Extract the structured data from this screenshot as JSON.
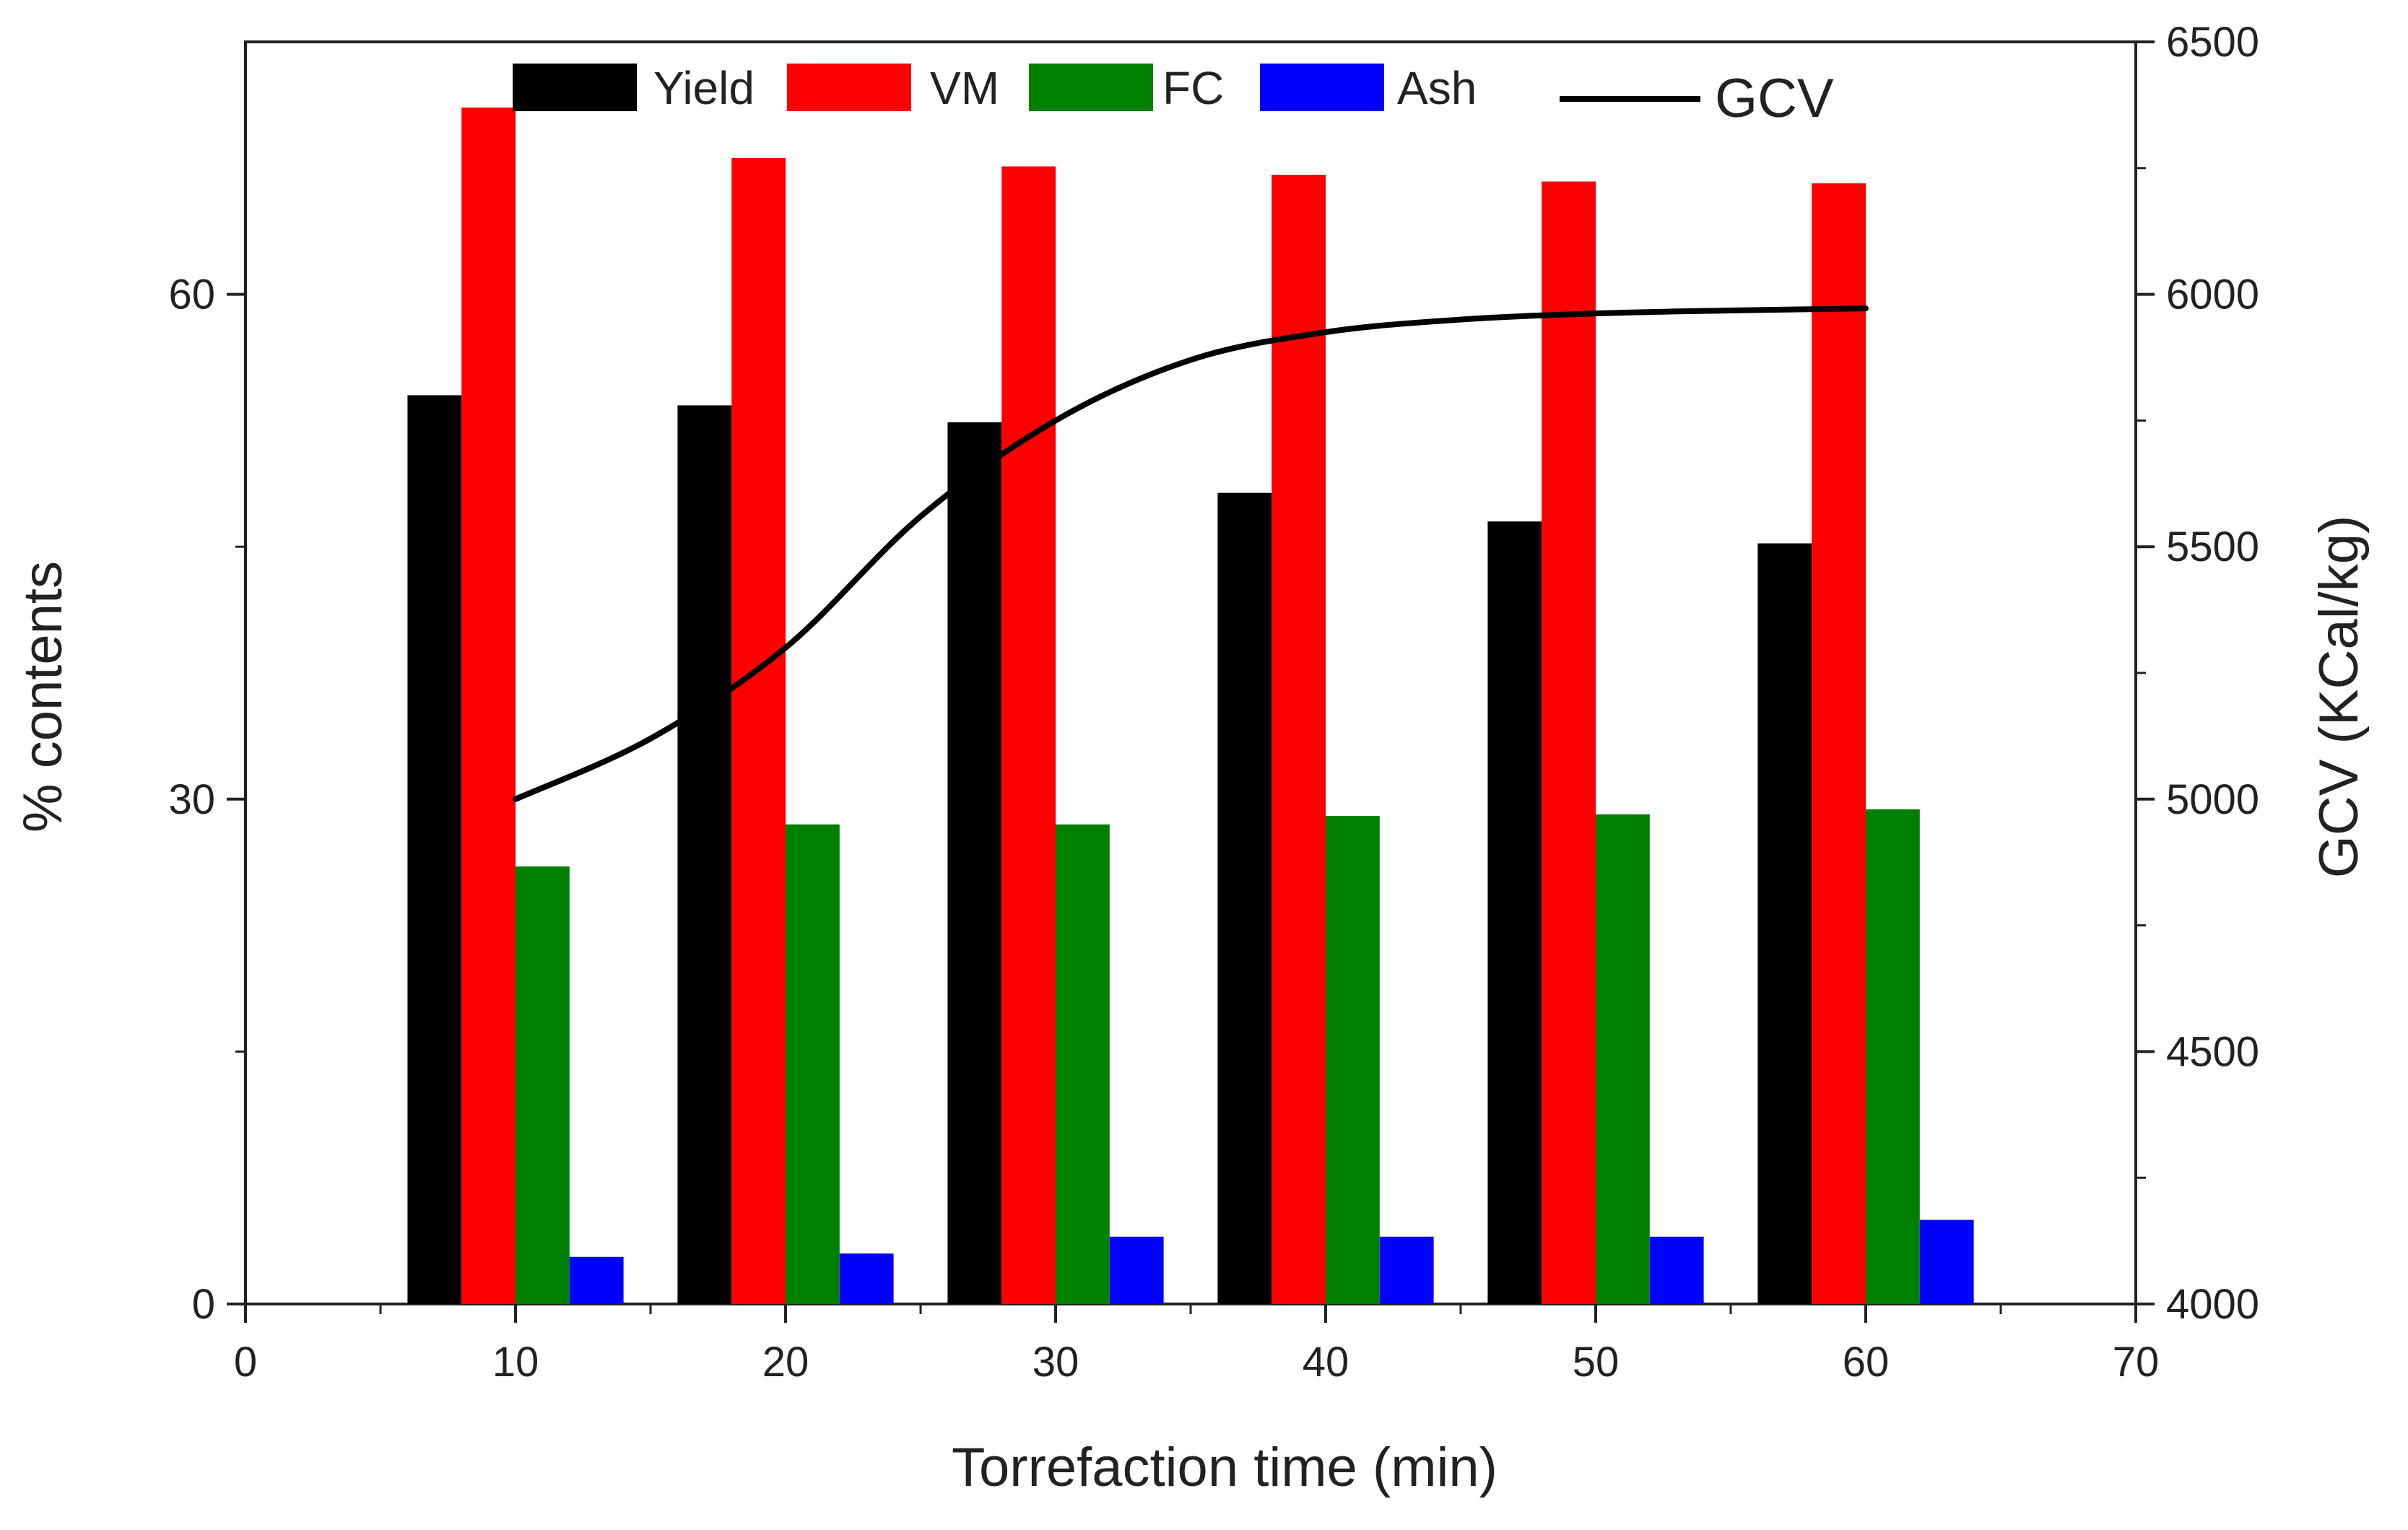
{
  "chart_data": {
    "type": "bar",
    "title": "",
    "xlabel": "Torrefaction time (min)",
    "ylabel": "% contents",
    "y2label": "GCV (KCal/kg)",
    "xlim": [
      0,
      70
    ],
    "ylim": [
      0,
      75
    ],
    "y2lim": [
      4000,
      6500
    ],
    "xticks": [
      "0",
      "10",
      "20",
      "30",
      "40",
      "50",
      "60",
      "70"
    ],
    "yticks": [
      "0",
      "30",
      "60"
    ],
    "y2ticks": [
      "4000",
      "4500",
      "5000",
      "5500",
      "6000",
      "6500"
    ],
    "x": [
      10,
      20,
      30,
      40,
      50,
      60
    ],
    "series": [
      {
        "name": "Yield",
        "color": "#000000",
        "values": [
          54.0,
          53.4,
          52.4,
          48.2,
          46.5,
          45.2
        ]
      },
      {
        "name": "VM",
        "color": "#ff0000",
        "values": [
          71.1,
          68.1,
          67.6,
          67.1,
          66.7,
          66.6
        ]
      },
      {
        "name": "FC",
        "color": "#008000",
        "values": [
          26.0,
          28.5,
          28.5,
          29.0,
          29.1,
          29.4
        ]
      },
      {
        "name": "Ash",
        "color": "#0000ff",
        "values": [
          2.8,
          3.0,
          4.0,
          4.0,
          4.0,
          5.0
        ]
      }
    ],
    "line_series": {
      "name": "GCV",
      "color": "#000000",
      "axis": "right",
      "x": [
        10,
        15,
        20,
        25,
        30,
        35,
        40,
        45,
        50,
        55,
        60
      ],
      "values": [
        5000,
        5120,
        5300,
        5560,
        5750,
        5870,
        5925,
        5950,
        5962,
        5968,
        5972
      ]
    },
    "legend_position": "top",
    "grid": false
  }
}
